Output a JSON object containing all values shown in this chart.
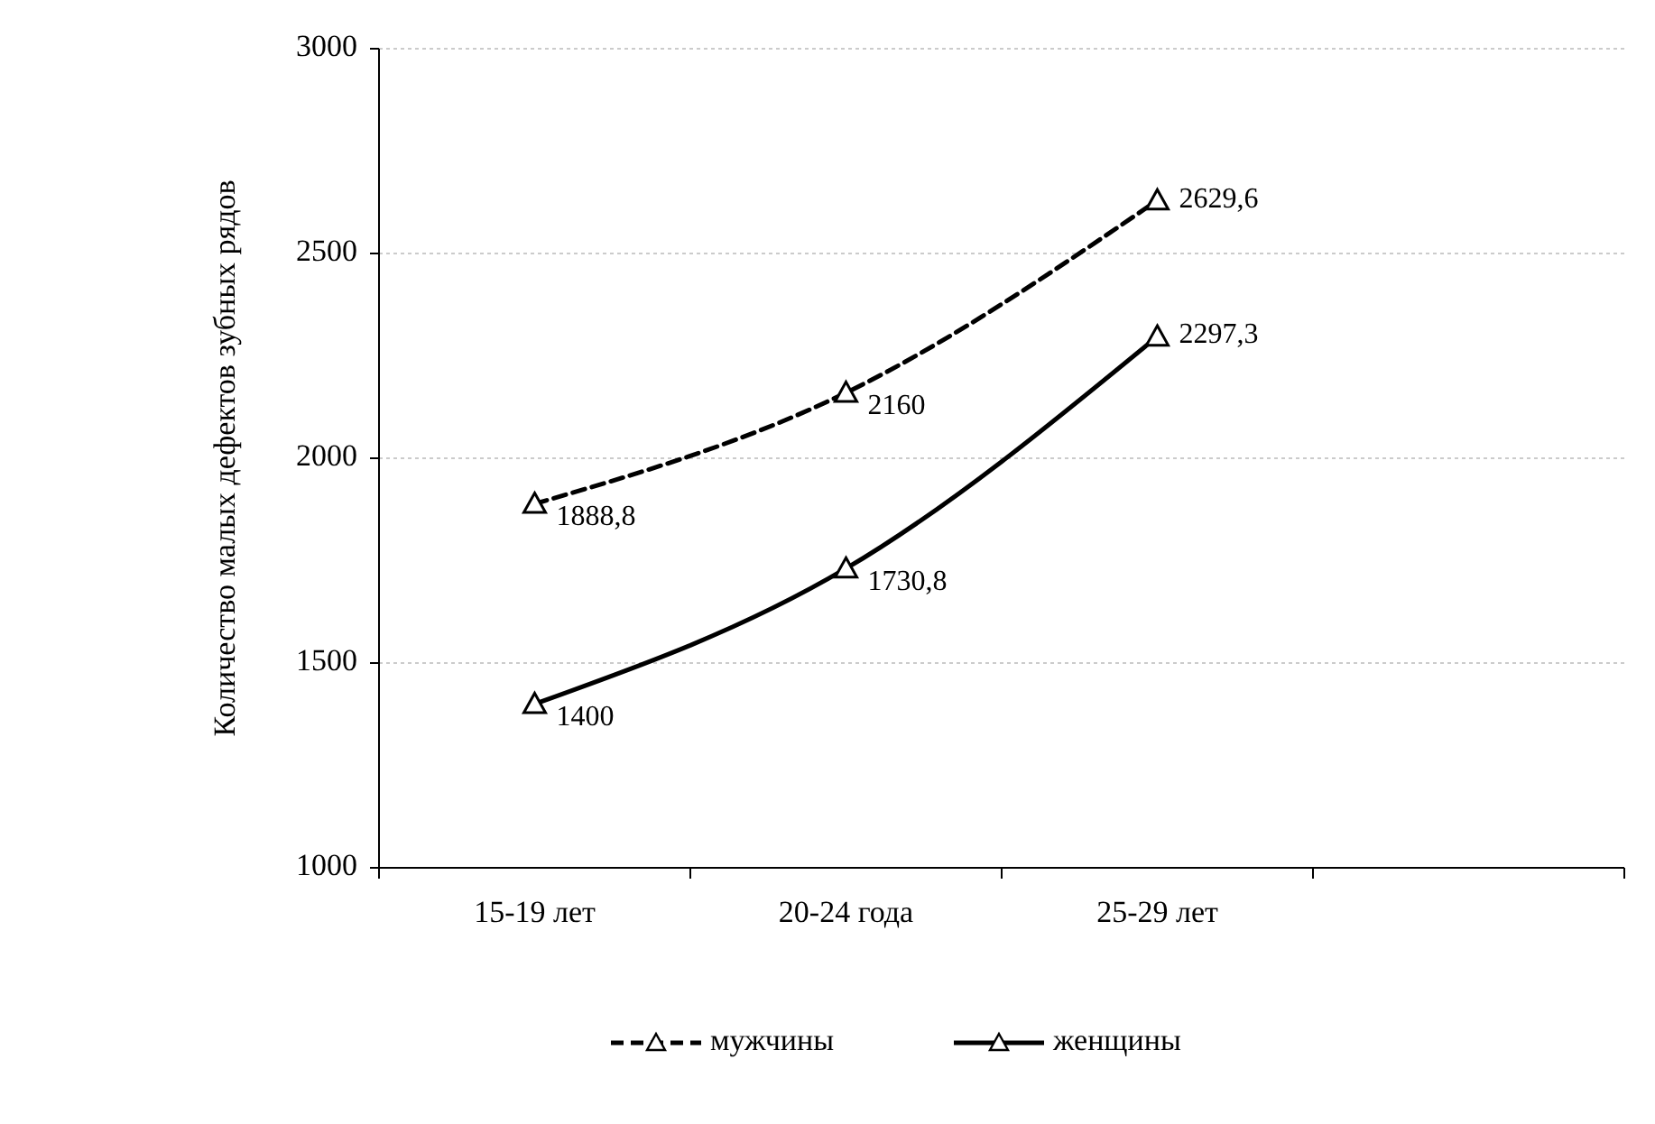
{
  "chart_data": {
    "type": "line",
    "ylabel": "Количество малых дефектов зубных рядов",
    "categories": [
      "15-19 лет",
      "20-24 года",
      "25-29 лет",
      null
    ],
    "series": [
      {
        "name": "мужчины",
        "color": "#000000",
        "values": [
          1888.8,
          2160,
          2629.6,
          null
        ],
        "value_labels": [
          "1888,8",
          "2160",
          "2629,6",
          null
        ],
        "line_style": "dashed"
      },
      {
        "name": "женщины",
        "color": "#000000",
        "values": [
          1400,
          1730.8,
          2297.3,
          null
        ],
        "value_labels": [
          "1400",
          "1730,8",
          "2297,3",
          null
        ],
        "line_style": "solid"
      }
    ],
    "ylim": [
      1000,
      3000
    ],
    "yticks": [
      1000,
      1500,
      2000,
      2500,
      3000
    ],
    "grid": "y",
    "legend": "bottom",
    "marker": "triangle"
  }
}
